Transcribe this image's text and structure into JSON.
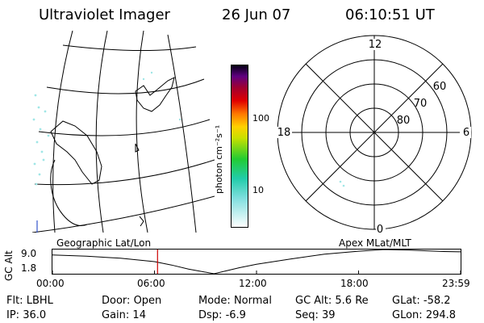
{
  "header": {
    "title": "Ultraviolet Imager",
    "date": "26 Jun 07",
    "time": "06:10:51 UT"
  },
  "colorbar": {
    "unit_label": "photon cm⁻²s⁻¹",
    "ticks": [
      "100",
      "10"
    ]
  },
  "polar_plot": {
    "mlt_labels": {
      "top": "12",
      "left": "18",
      "right": "6",
      "bottom": "0"
    },
    "lat_labels": [
      "60",
      "70",
      "80"
    ]
  },
  "orbit_strip": {
    "left_title": "Geographic Lat/Lon",
    "right_title": "Apex MLat/MLT",
    "y_axis_label": "GC Alt",
    "y_ticks": [
      "9.0",
      "1.8"
    ],
    "x_ticks": [
      "00:00",
      "06:00",
      "12:00",
      "18:00",
      "23:59"
    ]
  },
  "chart_data": {
    "type": "line",
    "title": "",
    "xlabel": "",
    "ylabel": "GC Alt",
    "xlim": [
      0,
      24
    ],
    "ylim": [
      1.8,
      9.0
    ],
    "current_time_marker": 6.18,
    "series": [
      {
        "x": [
          0,
          2,
          4,
          6,
          7,
          8,
          9.5,
          11,
          12,
          14,
          16,
          18,
          19.5,
          21,
          23,
          24
        ],
        "y": [
          7.4,
          7.0,
          6.4,
          5.4,
          4.4,
          3.2,
          1.8,
          3.6,
          4.6,
          6.2,
          7.6,
          8.5,
          9.0,
          8.8,
          8.4,
          8.3
        ]
      }
    ]
  },
  "status": {
    "rows": [
      [
        {
          "label": "Flt:",
          "value": "LBHL"
        },
        {
          "label": "Door:",
          "value": "Open"
        },
        {
          "label": "Mode:",
          "value": "Normal"
        },
        {
          "label": "GC Alt:",
          "value": "5.6 Re"
        },
        {
          "label": "GLat:",
          "value": "-58.2"
        }
      ],
      [
        {
          "label": "IP:",
          "value": "36.0"
        },
        {
          "label": "Gain:",
          "value": "14"
        },
        {
          "label": "Dsp:",
          "value": "-6.9"
        },
        {
          "label": "Seq:",
          "value": "39"
        },
        {
          "label": "GLon:",
          "value": "294.8"
        }
      ]
    ]
  }
}
